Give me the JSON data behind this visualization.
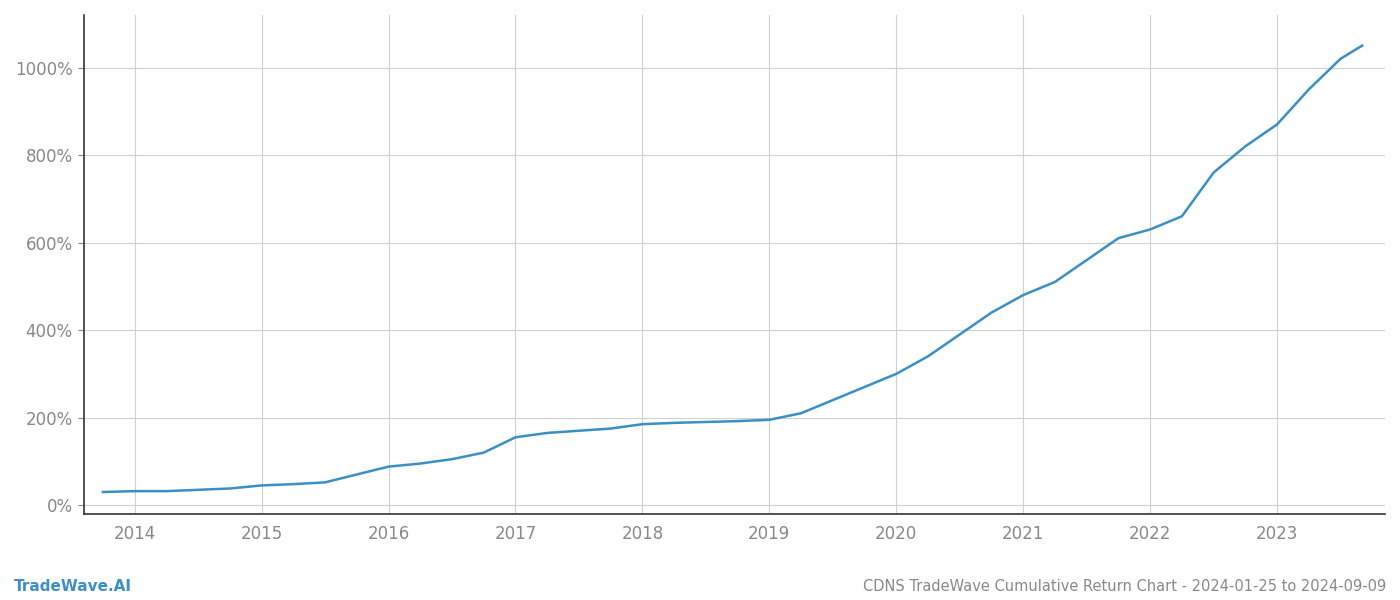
{
  "title": "CDNS TradeWave Cumulative Return Chart - 2024-01-25 to 2024-09-09",
  "watermark": "TradeWave.AI",
  "line_color": "#3a8fc4",
  "background_color": "#ffffff",
  "grid_color": "#d0d0d0",
  "x_years": [
    2014,
    2015,
    2016,
    2017,
    2018,
    2019,
    2020,
    2021,
    2022,
    2023
  ],
  "x_data": [
    2013.75,
    2014.0,
    2014.25,
    2014.5,
    2014.75,
    2015.0,
    2015.25,
    2015.5,
    2015.75,
    2016.0,
    2016.25,
    2016.5,
    2016.75,
    2017.0,
    2017.25,
    2017.5,
    2017.75,
    2018.0,
    2018.25,
    2018.5,
    2018.75,
    2019.0,
    2019.25,
    2019.5,
    2019.75,
    2020.0,
    2020.25,
    2020.5,
    2020.75,
    2021.0,
    2021.25,
    2021.5,
    2021.75,
    2022.0,
    2022.25,
    2022.5,
    2022.75,
    2023.0,
    2023.25,
    2023.5,
    2023.67
  ],
  "y_data": [
    30,
    32,
    32,
    35,
    38,
    45,
    48,
    52,
    70,
    88,
    95,
    105,
    120,
    155,
    165,
    170,
    175,
    185,
    188,
    190,
    192,
    195,
    210,
    240,
    270,
    300,
    340,
    390,
    440,
    480,
    510,
    560,
    610,
    630,
    660,
    760,
    820,
    870,
    950,
    1020,
    1050
  ],
  "yticks": [
    0,
    200,
    400,
    600,
    800,
    1000
  ],
  "ylim": [
    -20,
    1120
  ],
  "xlim": [
    2013.6,
    2023.85
  ],
  "line_width": 1.8,
  "title_fontsize": 10.5,
  "watermark_fontsize": 11,
  "tick_fontsize": 12,
  "tick_color": "#888888",
  "spine_color": "#333333",
  "bottom_spine_color": "#333333"
}
